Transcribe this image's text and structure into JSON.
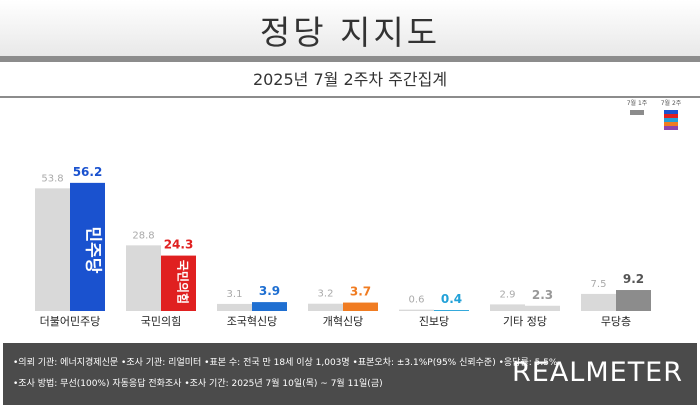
{
  "title": "정당 지지도",
  "subtitle": "2025년 7월 2주차 주간집계",
  "legend": {
    "prev": "7월 1주",
    "curr": "7월 2주"
  },
  "brand": "REALMETER",
  "notes": [
    "•의뢰 기관: 에너지경제신문  •조사 기관: 리얼미터  •표본 수: 전국 만 18세 이상 1,003명  •표본오차: ±3.1%P(95% 신뢰수준)  •응답률: 5.5%",
    "•조사 방법: 무선(100%) 자동응답 전화조사  •조사 기간: 2025년 7월 10일(목) ~ 7월 11일(금)"
  ],
  "party_marks": {
    "democratic": "민주당",
    "ppp": "국민의힘"
  },
  "colors": {
    "prev": "#d9d9d9",
    "democratic": "#1a52cf",
    "ppp": "#e02020",
    "rebuilding": "#1f6fd1",
    "reform": "#f07c22",
    "progressive": "#22a1d8",
    "other": "#d9d9d9",
    "independent": "#8c8c8c"
  },
  "chart_data": {
    "type": "bar",
    "categories": [
      "더불어민주당",
      "국민의힘",
      "조국혁신당",
      "개혁신당",
      "진보당",
      "기타 정당",
      "무당층"
    ],
    "series": [
      {
        "name": "7월 1주",
        "values": [
          53.8,
          28.8,
          3.1,
          3.2,
          0.6,
          2.9,
          7.5
        ]
      },
      {
        "name": "7월 2주",
        "values": [
          56.2,
          24.3,
          3.9,
          3.7,
          0.4,
          2.3,
          9.2
        ]
      }
    ],
    "ylim": [
      0,
      60
    ]
  }
}
